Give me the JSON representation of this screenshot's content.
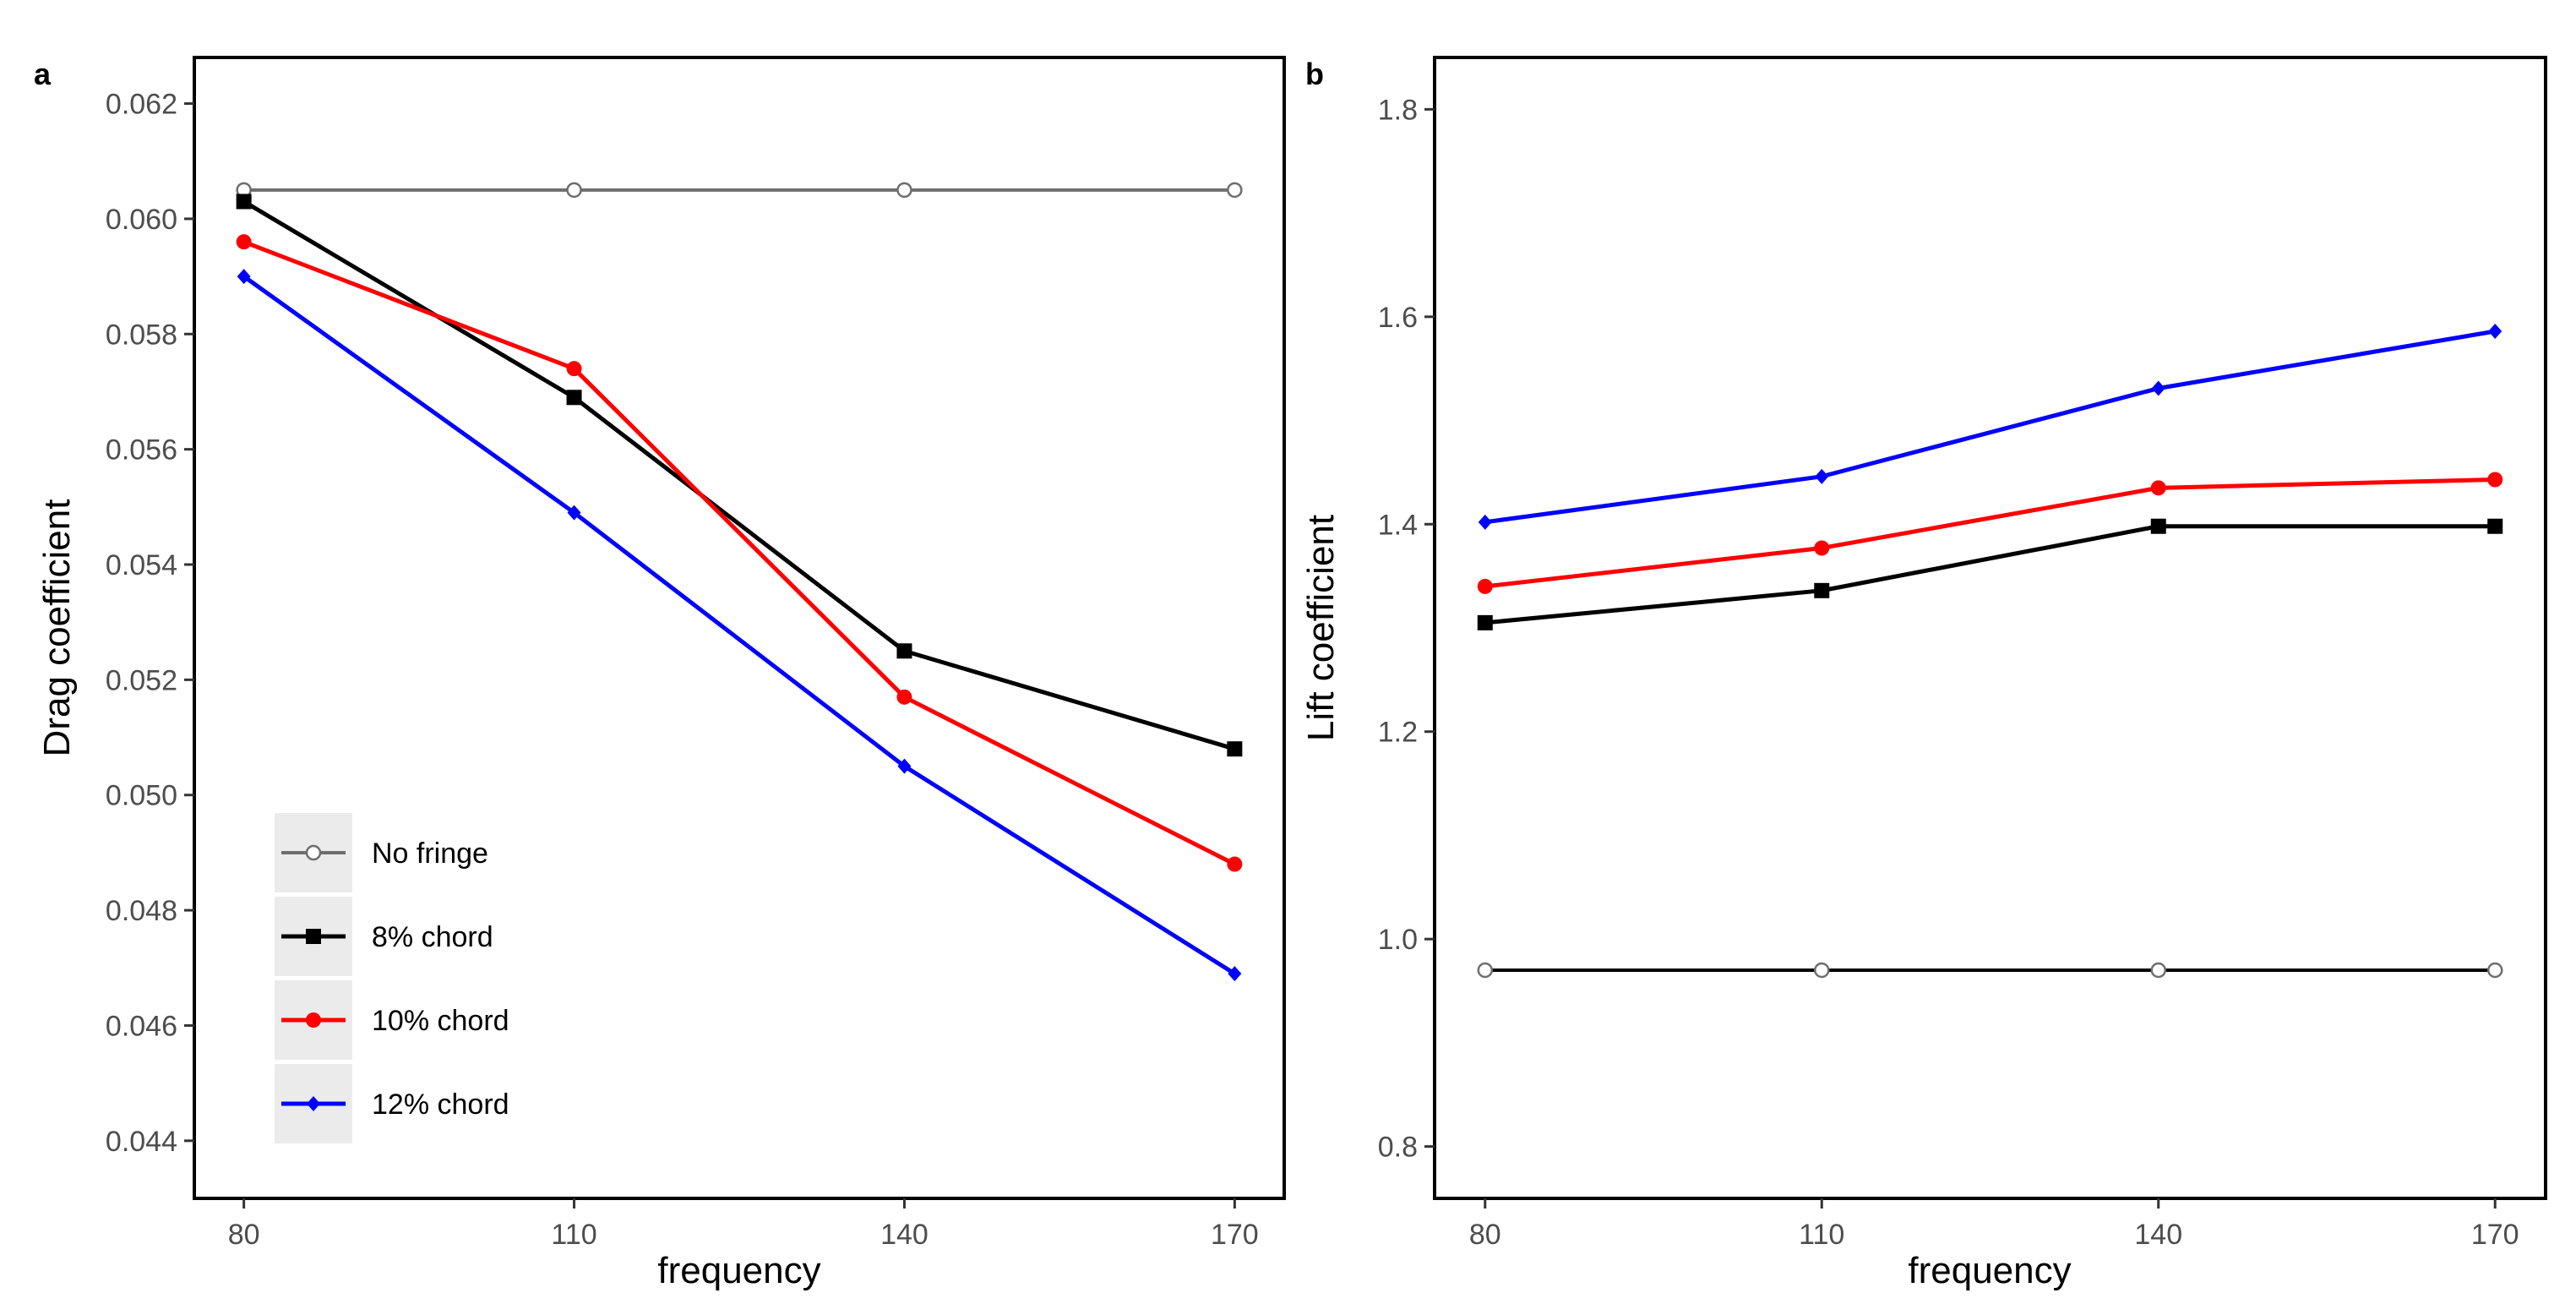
{
  "chart_data": [
    {
      "type": "line",
      "panel": "a",
      "xlabel": "frequency",
      "ylabel": "Drag coefficient",
      "categories": [
        80,
        110,
        140,
        170
      ],
      "xlim": [
        75.5,
        174.5
      ],
      "ylim": [
        0.043,
        0.0628
      ],
      "yticks": [
        "0.044",
        "0.046",
        "0.048",
        "0.050",
        "0.052",
        "0.054",
        "0.056",
        "0.058",
        "0.060",
        "0.062"
      ],
      "xticks": [
        "80",
        "110",
        "140",
        "170"
      ],
      "series": [
        {
          "name": "No fringe",
          "values": [
            0.0605,
            0.0605,
            0.0605,
            0.0605
          ],
          "color": "#6e6e6e",
          "marker": "open-circle"
        },
        {
          "name": "8% chord",
          "values": [
            0.0603,
            0.0569,
            0.0525,
            0.0508
          ],
          "color": "#000000",
          "marker": "square"
        },
        {
          "name": "10% chord",
          "values": [
            0.0596,
            0.0574,
            0.0517,
            0.0488
          ],
          "color": "#ff0000",
          "marker": "circle"
        },
        {
          "name": "12% chord",
          "values": [
            0.059,
            0.0549,
            0.0505,
            0.0469
          ],
          "color": "#0000ff",
          "marker": "diamond"
        }
      ],
      "legend": {
        "position": "bottom-left",
        "entries": [
          "No fringe",
          "8% chord",
          "10% chord",
          "12% chord"
        ]
      }
    },
    {
      "type": "line",
      "panel": "b",
      "xlabel": "frequency",
      "ylabel": "Lift coefficient",
      "categories": [
        80,
        110,
        140,
        170
      ],
      "xlim": [
        75.5,
        174.5
      ],
      "ylim": [
        0.75,
        1.85
      ],
      "yticks": [
        "0.8",
        "1.0",
        "1.2",
        "1.4",
        "1.6",
        "1.8"
      ],
      "xticks": [
        "80",
        "110",
        "140",
        "170"
      ],
      "series": [
        {
          "name": "No fringe",
          "values": [
            0.97,
            0.97,
            0.97,
            0.97
          ],
          "color": "#000000",
          "marker": "open-circle"
        },
        {
          "name": "8% chord",
          "values": [
            1.305,
            1.336,
            1.398,
            1.398
          ],
          "color": "#000000",
          "marker": "square"
        },
        {
          "name": "10% chord",
          "values": [
            1.34,
            1.377,
            1.435,
            1.443
          ],
          "color": "#ff0000",
          "marker": "circle"
        },
        {
          "name": "12% chord",
          "values": [
            1.402,
            1.446,
            1.531,
            1.586
          ],
          "color": "#0000ff",
          "marker": "diamond"
        }
      ]
    }
  ]
}
